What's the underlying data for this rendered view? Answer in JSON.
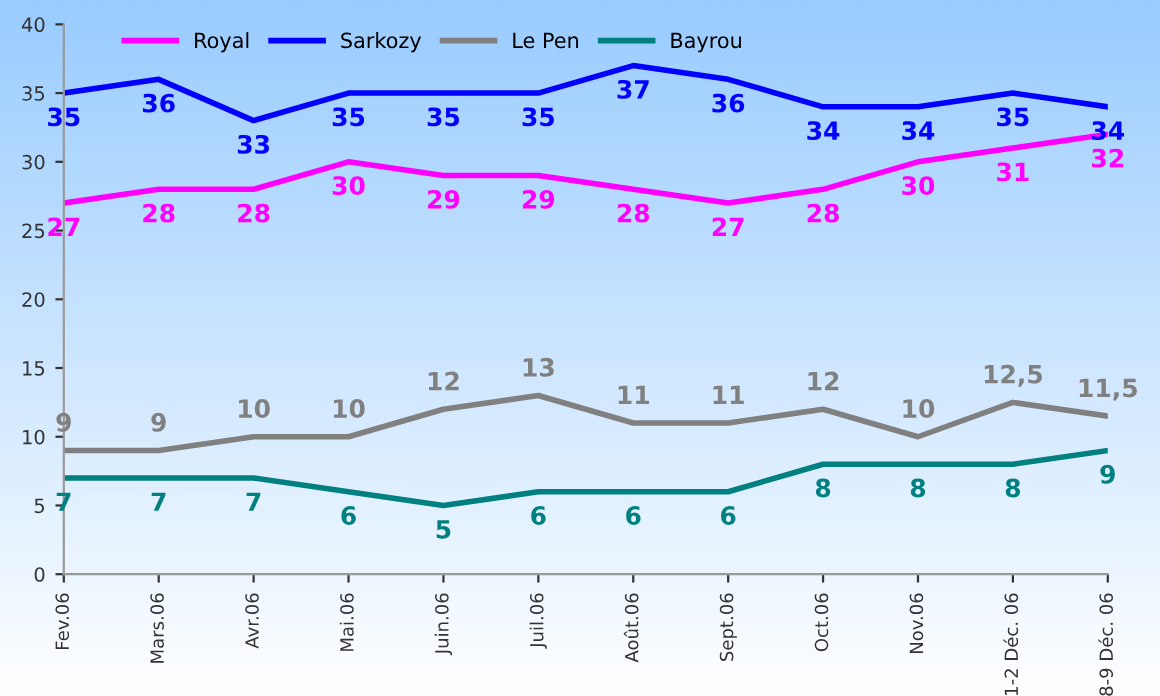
{
  "chart_data": {
    "type": "line",
    "categories": [
      "Fev.06",
      "Mars.06",
      "Avr.06",
      "Mai.06",
      "Juin.06",
      "Juil.06",
      "Août.06",
      "Sept.06",
      "Oct.06",
      "Nov.06",
      "1-2 Déc. 06",
      "8-9 Déc. 06"
    ],
    "series": [
      {
        "name": "Royal",
        "color": "#ff00ff",
        "values": [
          27,
          28,
          28,
          30,
          29,
          29,
          28,
          27,
          28,
          30,
          31,
          32
        ],
        "value_labels": [
          "27",
          "28",
          "28",
          "30",
          "29",
          "29",
          "28",
          "27",
          "28",
          "30",
          "31",
          "32"
        ]
      },
      {
        "name": "Sarkozy",
        "color": "#0000ff",
        "values": [
          35,
          36,
          33,
          35,
          35,
          35,
          37,
          36,
          34,
          34,
          35,
          34
        ],
        "value_labels": [
          "35",
          "36",
          "33",
          "35",
          "35",
          "35",
          "37",
          "36",
          "34",
          "34",
          "35",
          "34"
        ]
      },
      {
        "name": "Le Pen",
        "color": "#808080",
        "values": [
          9,
          9,
          10,
          10,
          12,
          13,
          11,
          11,
          12,
          10,
          12.5,
          11.5
        ],
        "value_labels": [
          "9",
          "9",
          "10",
          "10",
          "12",
          "13",
          "11",
          "11",
          "12",
          "10",
          "12,5",
          "11,5"
        ]
      },
      {
        "name": "Bayrou",
        "color": "#008080",
        "values": [
          7,
          7,
          7,
          6,
          5,
          6,
          6,
          6,
          8,
          8,
          8,
          9
        ],
        "value_labels": [
          "7",
          "7",
          "7",
          "6",
          "5",
          "6",
          "6",
          "6",
          "8",
          "8",
          "8",
          "9"
        ]
      }
    ],
    "ylim": [
      0,
      40
    ],
    "yticks": [
      0,
      5,
      10,
      15,
      20,
      25,
      30,
      35,
      40
    ],
    "grid": false,
    "legend": "top left",
    "marker": "none",
    "line_style": "solid"
  }
}
